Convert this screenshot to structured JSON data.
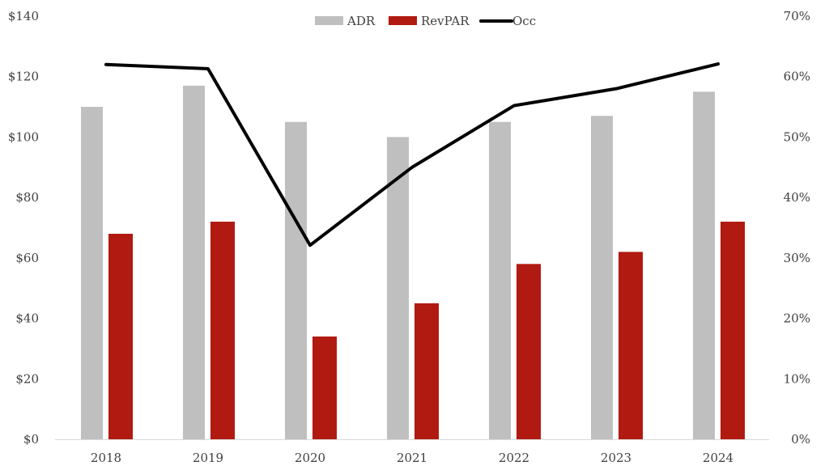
{
  "chart_data": {
    "type": "bar",
    "categories": [
      "2018",
      "2019",
      "2020",
      "2021",
      "2022",
      "2023",
      "2024"
    ],
    "series": [
      {
        "name": "ADR",
        "type": "bar",
        "axis": "left",
        "color": "#bfbfbf",
        "values": [
          110,
          117,
          105,
          100,
          105,
          107,
          115
        ]
      },
      {
        "name": "RevPAR",
        "type": "bar",
        "axis": "left",
        "color": "#b01a10",
        "values": [
          68,
          72,
          34,
          45,
          58,
          62,
          72
        ]
      },
      {
        "name": "Occ",
        "type": "line",
        "axis": "right",
        "color": "#000000",
        "values": [
          62,
          61.3,
          32.1,
          45,
          55.2,
          58,
          62.1
        ]
      }
    ],
    "left_axis": {
      "ylim": [
        0,
        140
      ],
      "ticks": [
        "$0",
        "$20",
        "$40",
        "$60",
        "$80",
        "$100",
        "$120",
        "$140"
      ]
    },
    "right_axis": {
      "ylim": [
        0,
        70
      ],
      "ticks": [
        "0%",
        "10%",
        "20%",
        "30%",
        "40%",
        "50%",
        "60%",
        "70%"
      ]
    },
    "legend": {
      "placement": "top-center",
      "entries": [
        "ADR",
        "RevPAR",
        "Occ"
      ]
    },
    "grid": false
  }
}
